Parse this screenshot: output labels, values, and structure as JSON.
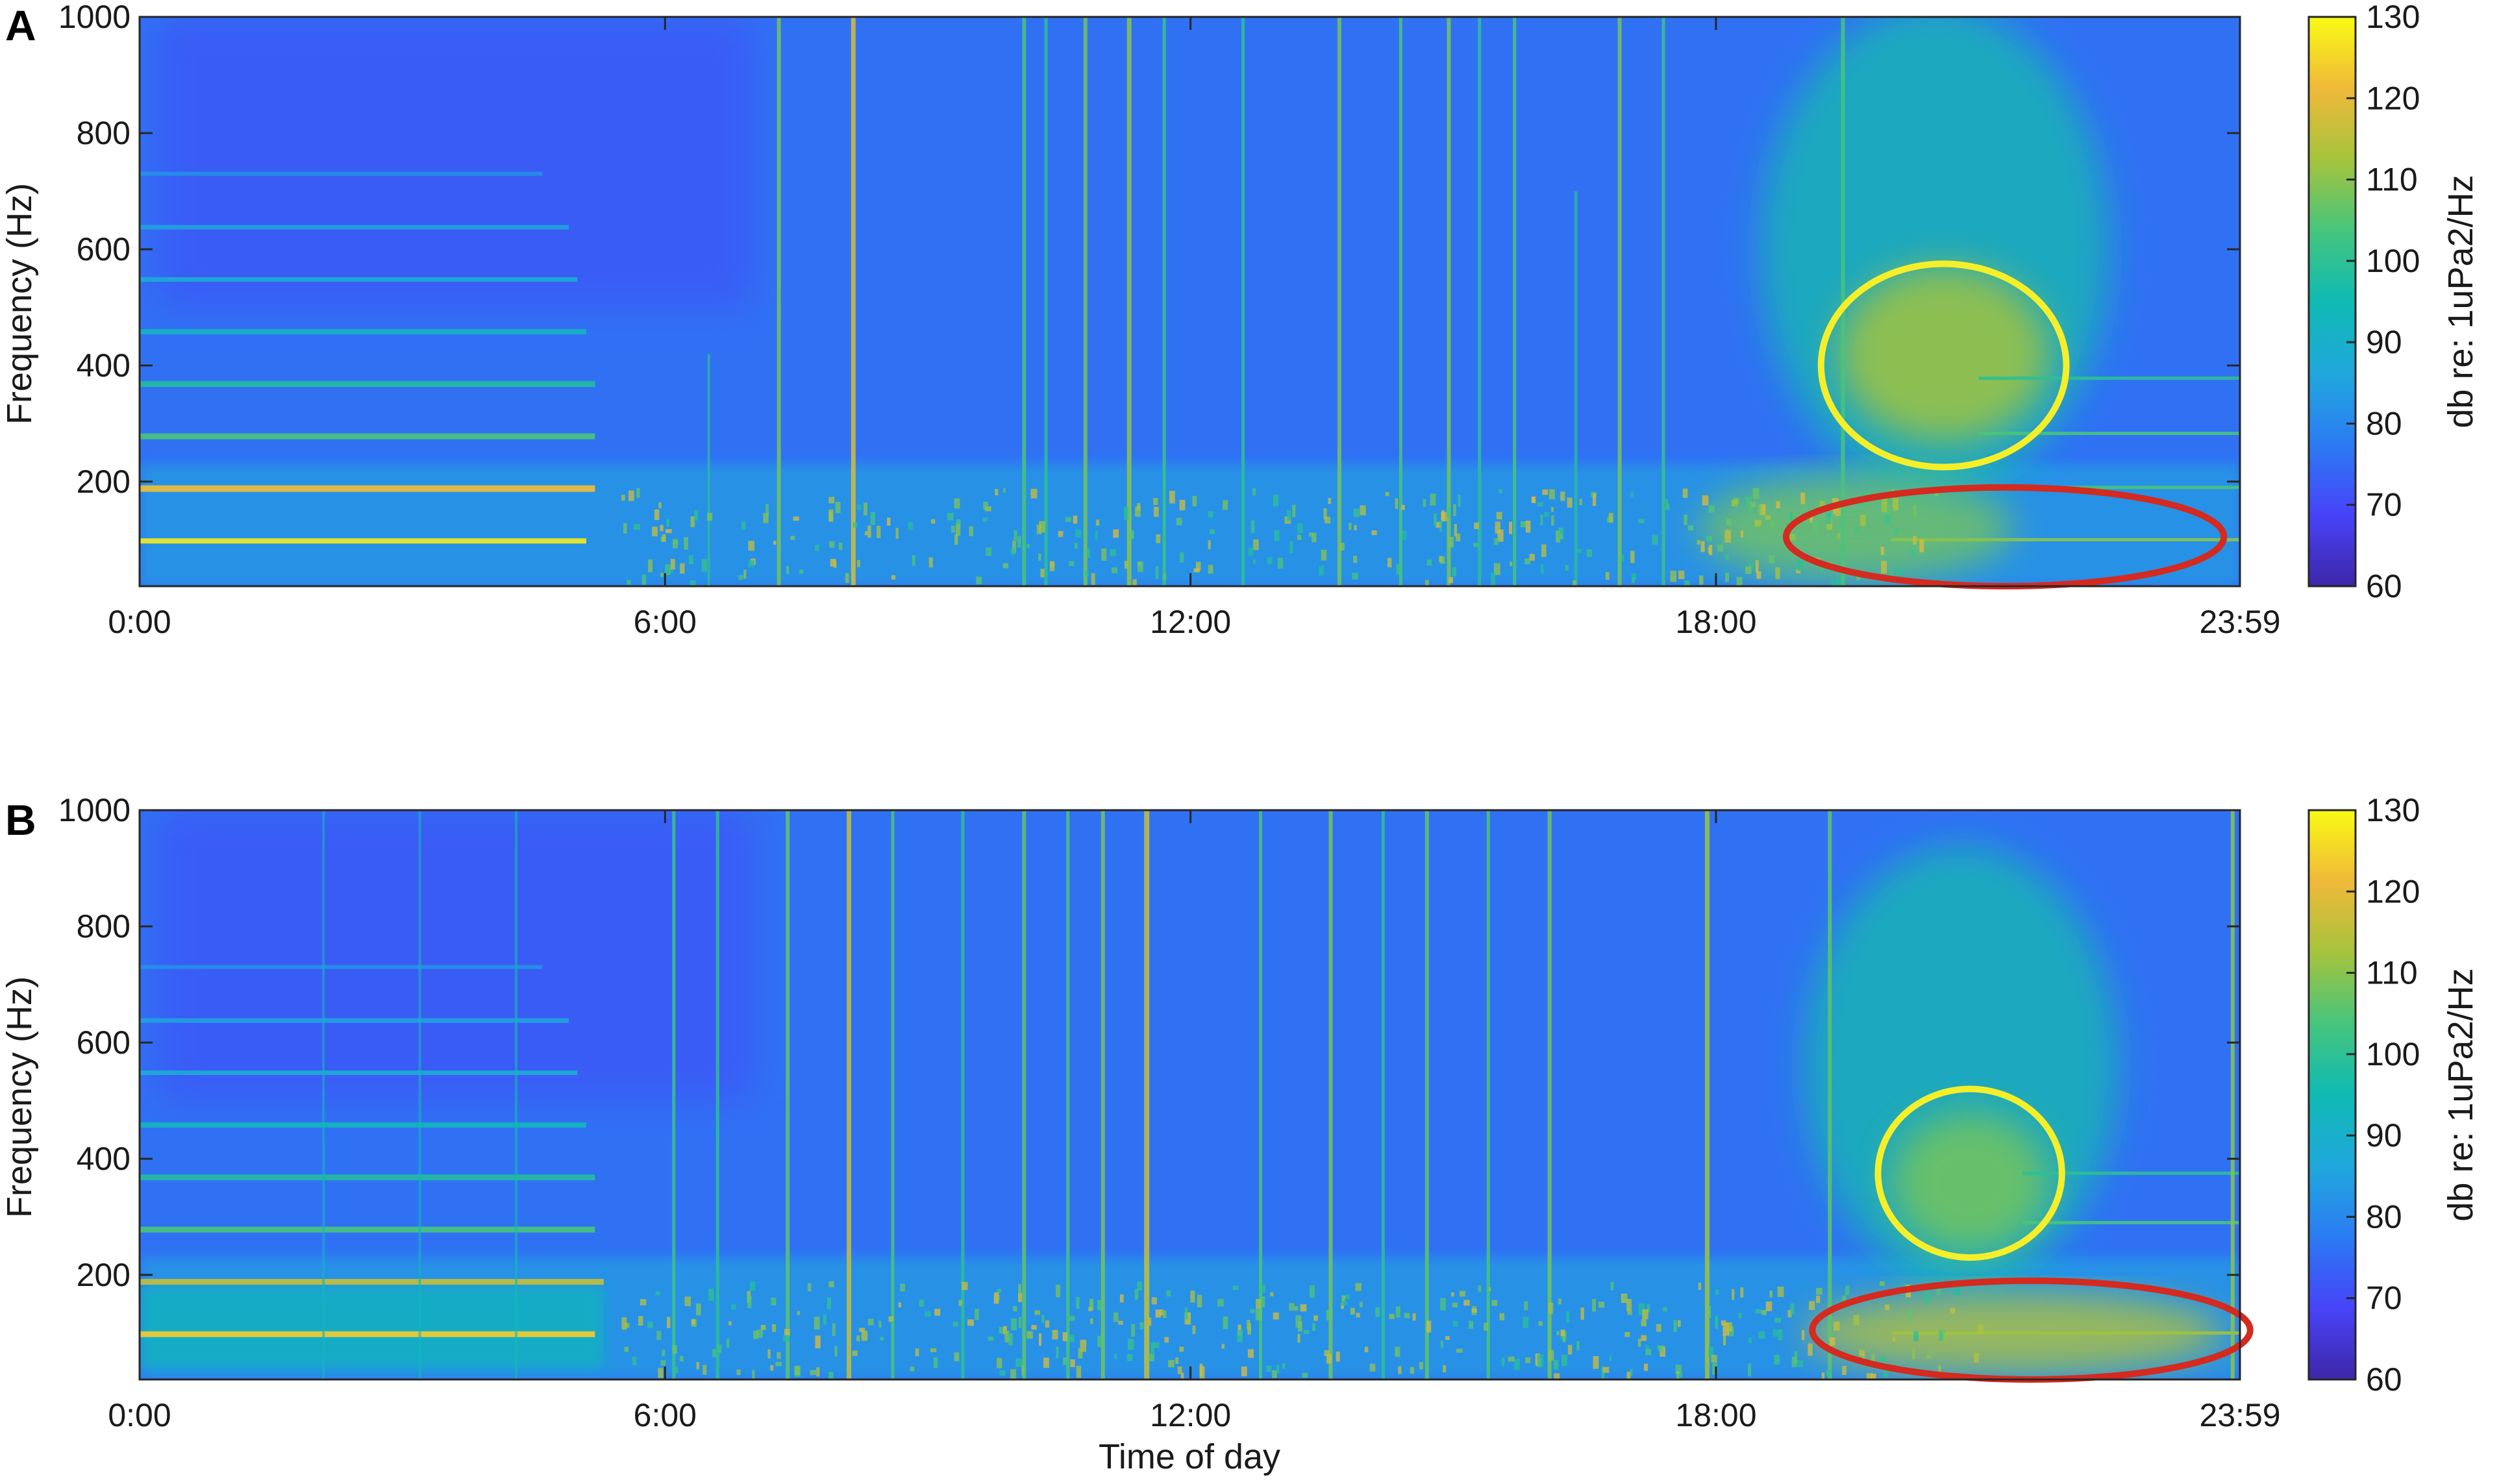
{
  "chart_data": [
    {
      "panel": "A",
      "type": "heatmap",
      "xlabel": "",
      "ylabel": "Frequency (Hz)",
      "x_ticks": [
        "0:00",
        "6:00",
        "12:00",
        "18:00",
        "23:59"
      ],
      "x_tick_values": [
        0,
        6,
        12,
        18,
        23.983
      ],
      "xlim": [
        0,
        23.983
      ],
      "y_ticks": [
        "200",
        "400",
        "600",
        "800",
        "1000"
      ],
      "y_tick_values": [
        200,
        400,
        600,
        800,
        1000
      ],
      "ylim": [
        20,
        1000
      ],
      "colorbar": {
        "label": "db re: 1uPa2/Hz",
        "ticks": [
          "60",
          "70",
          "80",
          "90",
          "100",
          "110",
          "120",
          "130"
        ],
        "tick_values": [
          60,
          70,
          80,
          90,
          100,
          110,
          120,
          130
        ],
        "range": [
          60,
          130
        ],
        "colormap": [
          "#3e26a8",
          "#4743f8",
          "#2b7bf3",
          "#20a8dc",
          "#0fbab3",
          "#46c57d",
          "#a6c33c",
          "#f0b93a",
          "#f9fb15"
        ]
      },
      "annotations": [
        {
          "shape": "ellipse",
          "color": "#f5ef2a",
          "cx_hours": 20.6,
          "cy_hz": 400,
          "rx_hours": 1.4,
          "ry_hz": 175
        },
        {
          "shape": "ellipse",
          "color": "#d42a1f",
          "cx_hours": 21.3,
          "cy_hz": 105,
          "rx_hours": 2.5,
          "ry_hz": 85
        }
      ]
    },
    {
      "panel": "B",
      "type": "heatmap",
      "xlabel": "Time of day",
      "ylabel": "Frequency (Hz)",
      "x_ticks": [
        "0:00",
        "6:00",
        "12:00",
        "18:00",
        "23:59"
      ],
      "x_tick_values": [
        0,
        6,
        12,
        18,
        23.983
      ],
      "xlim": [
        0,
        23.983
      ],
      "y_ticks": [
        "200",
        "400",
        "600",
        "800",
        "1000"
      ],
      "y_tick_values": [
        200,
        400,
        600,
        800,
        1000
      ],
      "ylim": [
        20,
        1000
      ],
      "colorbar": {
        "label": "db re: 1uPa2/Hz",
        "ticks": [
          "60",
          "70",
          "80",
          "90",
          "100",
          "110",
          "120",
          "130"
        ],
        "tick_values": [
          60,
          70,
          80,
          90,
          100,
          110,
          120,
          130
        ],
        "range": [
          60,
          130
        ],
        "colormap": [
          "#3e26a8",
          "#4743f8",
          "#2b7bf3",
          "#20a8dc",
          "#0fbab3",
          "#46c57d",
          "#a6c33c",
          "#f0b93a",
          "#f9fb15"
        ]
      },
      "annotations": [
        {
          "shape": "ellipse",
          "color": "#f5ef2a",
          "cx_hours": 20.9,
          "cy_hz": 375,
          "rx_hours": 1.05,
          "ry_hz": 145
        },
        {
          "shape": "ellipse",
          "color": "#d42a1f",
          "cx_hours": 21.6,
          "cy_hz": 105,
          "rx_hours": 2.5,
          "ry_hz": 85
        }
      ]
    }
  ]
}
